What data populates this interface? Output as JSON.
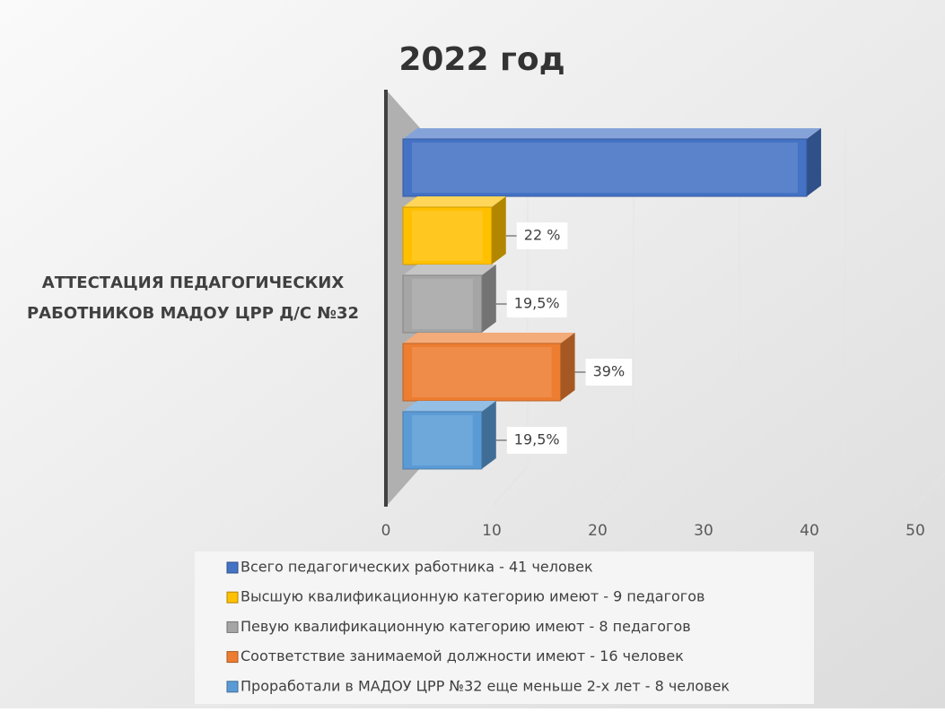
{
  "chart_data": {
    "type": "bar",
    "orientation": "horizontal",
    "title": "2022 год",
    "categories": [
      "АТТЕСТАЦИЯ ПЕДАГОГИЧЕСКИХ РАБОТНИКОВ МАДОУ ЦРР Д/С №32"
    ],
    "series": [
      {
        "name": "Всего педагогических работника - 41 человек",
        "color": "#4472c4",
        "values": [
          41
        ]
      },
      {
        "name": "Высшую квалификационную категорию имеют - 9 педагогов",
        "color": "#ffc000",
        "values": [
          9
        ],
        "annotation": "22 %"
      },
      {
        "name": "Певую квалификационную категорию имеют - 8 педагогов",
        "color": "#a5a5a5",
        "values": [
          8
        ],
        "annotation": "19,5%"
      },
      {
        "name": "Соответствие занимаемой должности имеют - 16 человек",
        "color": "#ed7d31",
        "values": [
          16
        ],
        "annotation": "39%"
      },
      {
        "name": "Проработали в МАДОУ ЦРР №32 еще меньше 2-х лет - 8 человек",
        "color": "#5b9bd5",
        "values": [
          8
        ],
        "annotation": "19,5%"
      }
    ],
    "xlim": [
      0,
      50
    ],
    "xticks": [
      0,
      10,
      20,
      30,
      40,
      50
    ],
    "grid": true,
    "legend": "bottom"
  }
}
